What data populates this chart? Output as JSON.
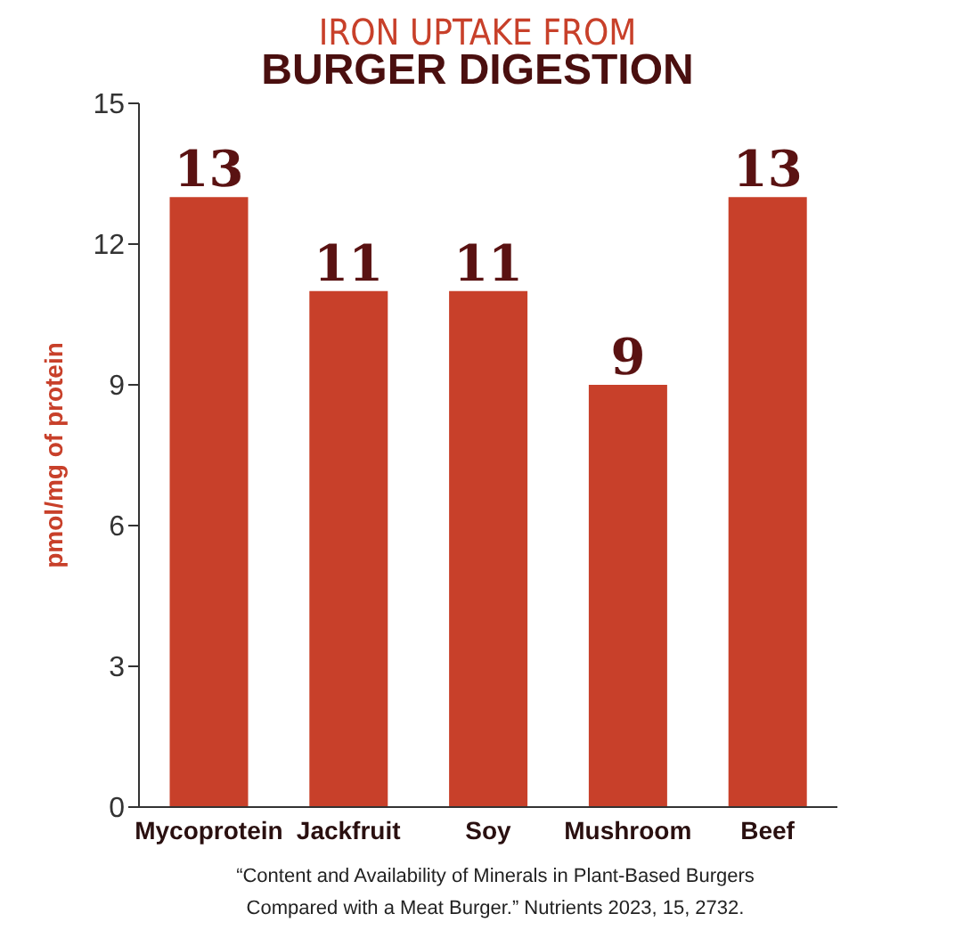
{
  "chart_data": {
    "type": "bar",
    "title": "IRON UPTAKE FROM",
    "subtitle": "BURGER DIGESTION",
    "ylabel": "pmol/mg of protein",
    "categories": [
      "Mycoprotein",
      "Jackfruit",
      "Soy",
      "Mushroom",
      "Beef"
    ],
    "values": [
      13,
      11,
      11,
      9,
      13
    ],
    "color": "#c8402a",
    "ylim": [
      0,
      15
    ],
    "yticks": [
      0,
      3,
      6,
      9,
      12,
      15
    ],
    "grid": false,
    "legend": false,
    "data_labels": true,
    "annotations": [
      "“Content and Availability of Minerals in Plant-Based Burgers Compared with a Meat Burger.” Nutrients 2023, 15, 2732."
    ]
  }
}
